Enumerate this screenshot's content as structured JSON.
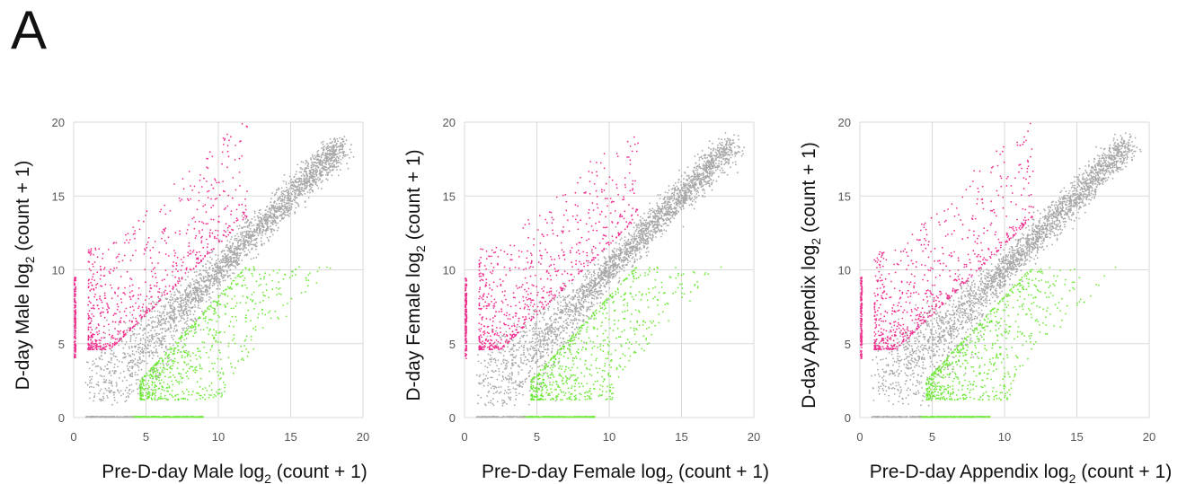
{
  "figure": {
    "panel_label": "A"
  },
  "colors": {
    "up": "#f0308f",
    "down": "#6fe83a",
    "neutral": "#a8a8a8",
    "grid": "#d9d9d9"
  },
  "chart_data": [
    {
      "type": "scatter",
      "xlabel_main": "Pre-D-day Male log",
      "xlabel_sub": "2",
      "xlabel_rest": " (count + 1)",
      "ylabel_main": "D-day Male log",
      "ylabel_sub": "2",
      "ylabel_rest": " (count + 1)",
      "xlim": [
        0,
        20
      ],
      "ylim": [
        0,
        20
      ],
      "xticks": [
        0,
        5,
        10,
        15,
        20
      ],
      "yticks": [
        0,
        5,
        10,
        15,
        20
      ],
      "grid": true,
      "series": [
        {
          "color_key": "neutral",
          "description_points": [
            [
              1,
              1
            ],
            [
              5,
              4.5
            ],
            [
              10,
              10
            ],
            [
              15,
              14.5
            ],
            [
              19,
              19
            ]
          ]
        },
        {
          "color_key": "up",
          "description_points": [
            [
              1,
              4.5
            ],
            [
              3,
              5.5
            ],
            [
              6,
              9
            ],
            [
              9,
              12
            ],
            [
              12,
              14
            ]
          ]
        },
        {
          "color_key": "down",
          "description_points": [
            [
              4.5,
              1.2
            ],
            [
              6,
              2
            ],
            [
              8,
              4
            ],
            [
              10,
              6
            ],
            [
              12,
              9
            ]
          ]
        }
      ]
    },
    {
      "type": "scatter",
      "xlabel_main": "Pre-D-day Female log",
      "xlabel_sub": "2",
      "xlabel_rest": " (count + 1)",
      "ylabel_main": "D-day Female log",
      "ylabel_sub": "2",
      "ylabel_rest": " (count + 1)",
      "xlim": [
        0,
        20
      ],
      "ylim": [
        0,
        20
      ],
      "xticks": [
        0,
        5,
        10,
        15,
        20
      ],
      "yticks": [
        0,
        5,
        10,
        15,
        20
      ],
      "grid": true,
      "series": [
        {
          "color_key": "neutral",
          "description_points": [
            [
              1,
              1
            ],
            [
              5,
              4.5
            ],
            [
              10,
              10
            ],
            [
              15,
              14.5
            ],
            [
              19,
              19
            ]
          ]
        },
        {
          "color_key": "up",
          "description_points": [
            [
              1,
              5
            ],
            [
              3,
              5.5
            ],
            [
              6,
              8.5
            ],
            [
              9,
              11.5
            ],
            [
              12,
              14
            ]
          ]
        },
        {
          "color_key": "down",
          "description_points": [
            [
              4.5,
              1.2
            ],
            [
              6,
              2
            ],
            [
              8,
              4
            ],
            [
              10,
              6
            ],
            [
              12,
              8
            ]
          ]
        }
      ]
    },
    {
      "type": "scatter",
      "xlabel_main": "Pre-D-day Appendix log",
      "xlabel_sub": "2",
      "xlabel_rest": " (count + 1)",
      "ylabel_main": "D-day Appendix log",
      "ylabel_sub": "2",
      "ylabel_rest": " (count + 1)",
      "xlim": [
        0,
        20
      ],
      "ylim": [
        0,
        20
      ],
      "xticks": [
        0,
        5,
        10,
        15,
        20
      ],
      "yticks": [
        0,
        5,
        10,
        15,
        20
      ],
      "grid": true,
      "series": [
        {
          "color_key": "neutral",
          "description_points": [
            [
              1,
              1
            ],
            [
              5,
              4.5
            ],
            [
              10,
              10
            ],
            [
              15,
              14.5
            ],
            [
              19,
              19
            ]
          ]
        },
        {
          "color_key": "up",
          "description_points": [
            [
              1,
              4.5
            ],
            [
              3,
              5.5
            ],
            [
              6,
              9
            ],
            [
              9,
              12
            ],
            [
              12,
              14.5
            ]
          ]
        },
        {
          "color_key": "down",
          "description_points": [
            [
              4.5,
              1.2
            ],
            [
              6,
              2
            ],
            [
              8,
              4
            ],
            [
              10,
              6
            ],
            [
              12,
              9
            ]
          ]
        }
      ]
    }
  ]
}
